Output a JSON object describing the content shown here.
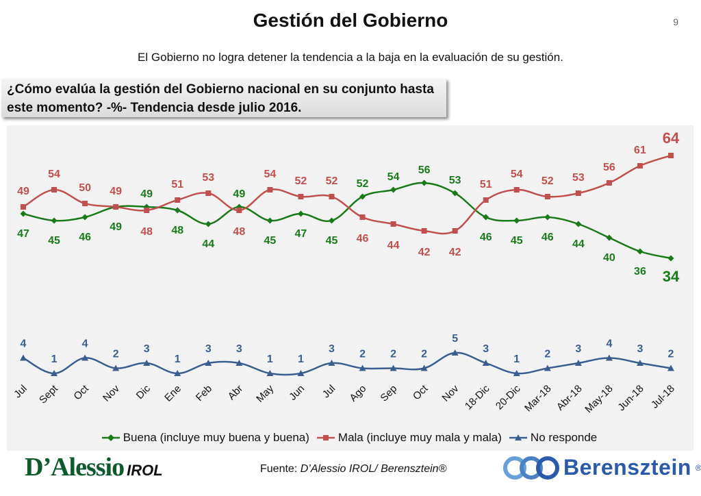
{
  "header": {
    "title": "Gestión del Gobierno",
    "page_number": "9",
    "subtitle": "El Gobierno no logra detener la tendencia a la baja en la evaluación de su gestión.",
    "question": "¿Cómo evalúa la gestión del Gobierno nacional en su conjunto hasta este momento? -%- Tendencia desde julio 2016."
  },
  "chart_data": {
    "type": "line",
    "categories": [
      "Jul",
      "Sept",
      "Oct",
      "Nov",
      "Dic",
      "Ene",
      "Feb",
      "Abr",
      "May",
      "Jun",
      "Jul",
      "Ago",
      "Sep",
      "Oct",
      "Nov",
      "18-Dic",
      "20-Dic",
      "Mar-18",
      "Abr-18",
      "May-18",
      "Jun-18",
      "Jul-18"
    ],
    "series": [
      {
        "name": "Buena (incluye muy buena y buena)",
        "color": "#1a7a1a",
        "marker": "diamond",
        "values": [
          47,
          45,
          46,
          49,
          49,
          48,
          44,
          49,
          45,
          47,
          45,
          52,
          54,
          56,
          53,
          46,
          45,
          46,
          44,
          40,
          36,
          34
        ]
      },
      {
        "name": "Mala (incluye muy mala y mala)",
        "color": "#c0504d",
        "marker": "square",
        "values": [
          49,
          54,
          50,
          49,
          48,
          51,
          53,
          48,
          54,
          52,
          52,
          46,
          44,
          42,
          42,
          51,
          54,
          52,
          53,
          56,
          61,
          64
        ]
      },
      {
        "name": "No responde",
        "color": "#3a5f8f",
        "marker": "triangle",
        "values": [
          4,
          1,
          4,
          2,
          3,
          1,
          3,
          3,
          1,
          1,
          3,
          2,
          2,
          2,
          5,
          3,
          1,
          2,
          3,
          4,
          3,
          2
        ]
      }
    ],
    "legend_position": "bottom",
    "grid": false
  },
  "footer": {
    "logo_left_main": "D’Alessio",
    "logo_left_sub": "IROL",
    "source_prefix": "Fuente: ",
    "source_text": "D’Alessio IROL/ Berensztein®",
    "logo_right": "Berensztein",
    "logo_right_mark": "®"
  }
}
